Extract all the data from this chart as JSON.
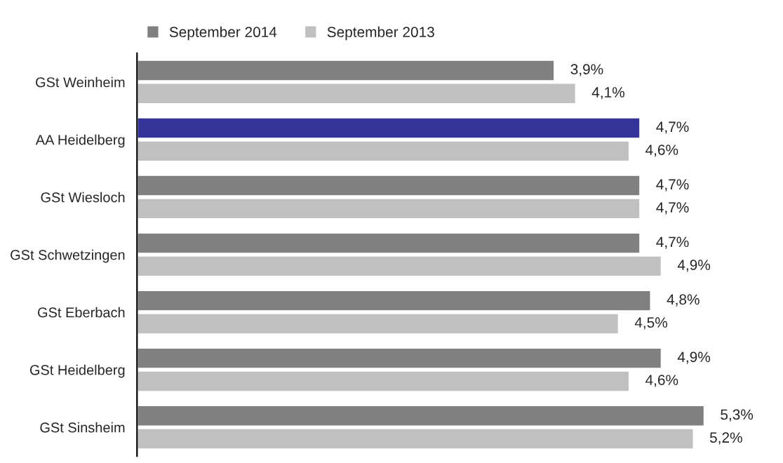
{
  "chart_data": {
    "type": "bar",
    "orientation": "horizontal",
    "categories": [
      "GSt Weinheim",
      "AA Heidelberg",
      "GSt Wiesloch",
      "GSt Schwetzingen",
      "GSt Eberbach",
      "GSt Heidelberg",
      "GSt Sinsheim"
    ],
    "series": [
      {
        "name": "September 2014",
        "color": "#808080",
        "colors": [
          "#808080",
          "#333399",
          "#808080",
          "#808080",
          "#808080",
          "#808080",
          "#808080"
        ],
        "values": [
          3.9,
          4.7,
          4.7,
          4.7,
          4.8,
          4.9,
          5.3
        ],
        "value_labels": [
          "3,9%",
          "4,7%",
          "4,7%",
          "4,7%",
          "4,8%",
          "4,9%",
          "5,3%"
        ]
      },
      {
        "name": "September 2013",
        "color": "#c0c0c0",
        "values": [
          4.1,
          4.6,
          4.7,
          4.9,
          4.5,
          4.6,
          5.2
        ],
        "value_labels": [
          "4,1%",
          "4,6%",
          "4,7%",
          "4,9%",
          "4,5%",
          "4,6%",
          "5,2%"
        ]
      }
    ],
    "legend": "top",
    "grid": false
  }
}
